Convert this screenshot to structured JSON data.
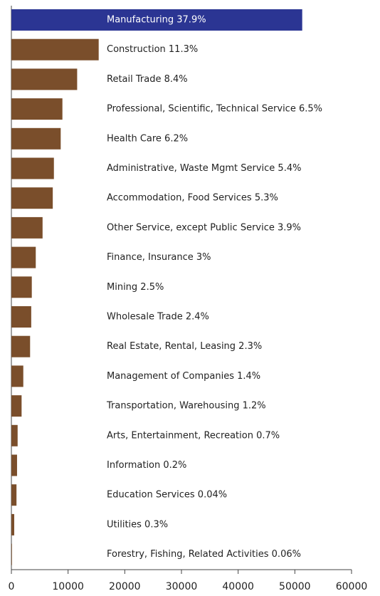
{
  "chart_data": {
    "type": "hbar",
    "categories": [
      "Manufacturing 37.9%",
      "Construction 11.3%",
      "Retail Trade 8.4%",
      "Professional, Scientific, Technical Service 6.5%",
      "Health Care 6.2%",
      "Administrative, Waste Mgmt Service 5.4%",
      "Accommodation, Food Services 5.3%",
      "Other Service, except Public Service 3.9%",
      "Finance, Insurance 3%",
      "Mining 2.5%",
      "Wholesale Trade 2.4%",
      "Real Estate, Rental, Leasing 2.3%",
      "Management of Companies 1.4%",
      "Transportation, Warehousing 1.2%",
      "Arts, Entertainment, Recreation 0.7%",
      "Information 0.2%",
      "Education Services 0.04%",
      "Utilities 0.3%",
      "Forestry, Fishing, Related Activities 0.06%"
    ],
    "values": [
      51300,
      15400,
      11600,
      9000,
      8700,
      7500,
      7300,
      5500,
      4300,
      3600,
      3500,
      3300,
      2100,
      1800,
      1100,
      1000,
      900,
      500,
      100
    ],
    "colors": [
      "#2b3593",
      "#7a4e2b",
      "#7a4e2b",
      "#7a4e2b",
      "#7a4e2b",
      "#7a4e2b",
      "#7a4e2b",
      "#7a4e2b",
      "#7a4e2b",
      "#7a4e2b",
      "#7a4e2b",
      "#7a4e2b",
      "#7a4e2b",
      "#7a4e2b",
      "#7a4e2b",
      "#7a4e2b",
      "#7a4e2b",
      "#7a4e2b",
      "#7a4e2b"
    ],
    "xlim": [
      0,
      60000
    ],
    "xticks": [
      0,
      10000,
      20000,
      30000,
      40000,
      50000,
      60000
    ]
  }
}
